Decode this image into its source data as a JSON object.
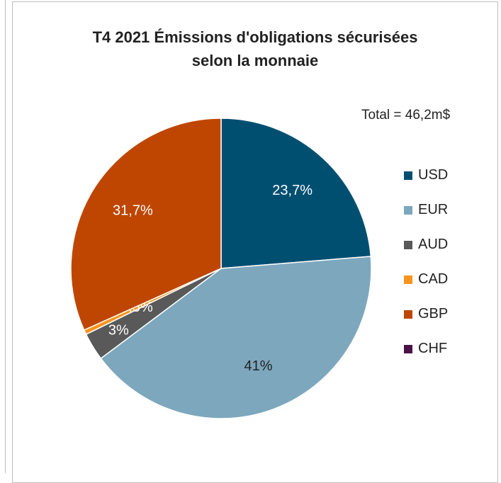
{
  "chart_data": {
    "type": "pie",
    "title": "T4 2021 Émissions d'obligations sécurisées selon la monnaie",
    "title_lines": [
      "T4 2021 Émissions d'obligations sécurisées",
      "selon la monnaie"
    ],
    "subtitle": "Total = 46,2m$",
    "legend_position": "right",
    "slices": [
      {
        "name": "USD",
        "value": 23.7,
        "label": "23,7%",
        "color": "#004f71"
      },
      {
        "name": "EUR",
        "value": 41.0,
        "label": "41%",
        "color": "#7da7bd"
      },
      {
        "name": "AUD",
        "value": 3.0,
        "label": "3%",
        "color": "#595959"
      },
      {
        "name": "CAD",
        "value": 0.5,
        "label": "0,5%",
        "color": "#f7941d"
      },
      {
        "name": "GBP",
        "value": 31.7,
        "label": "31,7%",
        "color": "#bf4600"
      },
      {
        "name": "CHF",
        "value": 0.0,
        "label": "",
        "color": "#4b1248"
      }
    ]
  }
}
